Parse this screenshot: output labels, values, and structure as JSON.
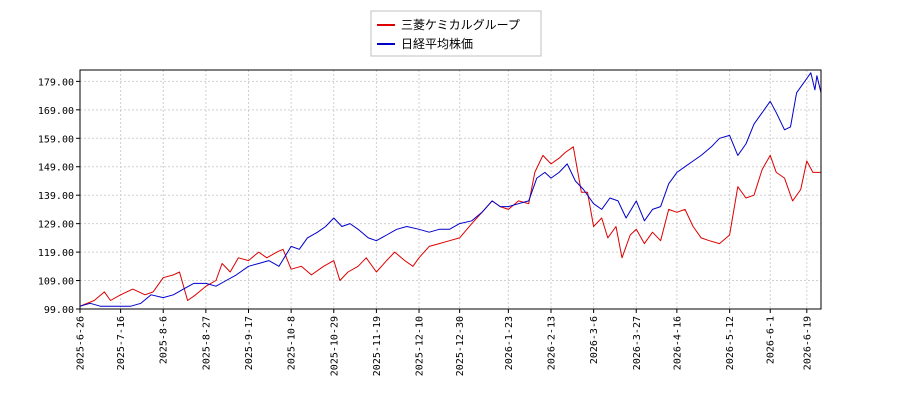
{
  "chart_data": {
    "type": "line",
    "title": "",
    "xlabel": "",
    "ylabel": "",
    "legend_position": "top-center",
    "grid": true,
    "x_range": [
      "2025-06-26",
      "2026-06-26"
    ],
    "ylim": [
      99.0,
      183.0
    ],
    "y_ticks": [
      "99.00",
      "109.00",
      "119.00",
      "129.00",
      "139.00",
      "149.00",
      "159.00",
      "169.00",
      "179.00"
    ],
    "x_ticks": [
      "2025-6-26",
      "2025-7-16",
      "2025-8-6",
      "2025-8-27",
      "2025-9-17",
      "2025-10-8",
      "2025-10-29",
      "2025-11-19",
      "2025-12-10",
      "2025-12-30",
      "2026-1-23",
      "2026-2-13",
      "2026-3-6",
      "2026-3-27",
      "2026-4-16",
      "2026-5-12",
      "2026-6-1",
      "2026-6-19"
    ],
    "series": [
      {
        "name": "三菱ケミカルグループ",
        "color": "#dd0000",
        "points": [
          [
            "2025-06-26",
            100
          ],
          [
            "2025-07-03",
            102
          ],
          [
            "2025-07-08",
            105
          ],
          [
            "2025-07-11",
            102
          ],
          [
            "2025-07-16",
            104
          ],
          [
            "2025-07-22",
            106
          ],
          [
            "2025-07-28",
            104
          ],
          [
            "2025-08-01",
            105
          ],
          [
            "2025-08-06",
            110
          ],
          [
            "2025-08-11",
            111
          ],
          [
            "2025-08-14",
            112
          ],
          [
            "2025-08-18",
            102
          ],
          [
            "2025-08-22",
            104
          ],
          [
            "2025-08-27",
            107
          ],
          [
            "2025-09-01",
            109
          ],
          [
            "2025-09-04",
            115
          ],
          [
            "2025-09-08",
            112
          ],
          [
            "2025-09-12",
            117
          ],
          [
            "2025-09-17",
            116
          ],
          [
            "2025-09-22",
            119
          ],
          [
            "2025-09-26",
            117
          ],
          [
            "2025-10-01",
            119
          ],
          [
            "2025-10-04",
            120
          ],
          [
            "2025-10-08",
            113
          ],
          [
            "2025-10-13",
            114
          ],
          [
            "2025-10-18",
            111
          ],
          [
            "2025-10-24",
            114
          ],
          [
            "2025-10-29",
            116
          ],
          [
            "2025-11-01",
            109
          ],
          [
            "2025-11-05",
            112
          ],
          [
            "2025-11-10",
            114
          ],
          [
            "2025-11-14",
            117
          ],
          [
            "2025-11-19",
            112
          ],
          [
            "2025-11-24",
            116
          ],
          [
            "2025-11-28",
            119
          ],
          [
            "2025-12-03",
            116
          ],
          [
            "2025-12-07",
            114
          ],
          [
            "2025-12-10",
            117
          ],
          [
            "2025-12-15",
            121
          ],
          [
            "2025-12-20",
            122
          ],
          [
            "2025-12-25",
            123
          ],
          [
            "2025-12-30",
            124
          ],
          [
            "2026-01-05",
            129
          ],
          [
            "2026-01-10",
            133
          ],
          [
            "2026-01-15",
            137
          ],
          [
            "2026-01-19",
            135
          ],
          [
            "2026-01-23",
            134
          ],
          [
            "2026-01-28",
            137
          ],
          [
            "2026-02-02",
            136
          ],
          [
            "2026-02-05",
            147
          ],
          [
            "2026-02-09",
            153
          ],
          [
            "2026-02-13",
            150
          ],
          [
            "2026-02-17",
            152
          ],
          [
            "2026-02-20",
            154
          ],
          [
            "2026-02-24",
            156
          ],
          [
            "2026-02-28",
            140
          ],
          [
            "2026-03-03",
            140
          ],
          [
            "2026-03-06",
            128
          ],
          [
            "2026-03-10",
            131
          ],
          [
            "2026-03-13",
            124
          ],
          [
            "2026-03-17",
            128
          ],
          [
            "2026-03-20",
            117
          ],
          [
            "2026-03-24",
            125
          ],
          [
            "2026-03-27",
            127
          ],
          [
            "2026-03-31",
            122
          ],
          [
            "2026-04-04",
            126
          ],
          [
            "2026-04-08",
            123
          ],
          [
            "2026-04-12",
            134
          ],
          [
            "2026-04-16",
            133
          ],
          [
            "2026-04-20",
            134
          ],
          [
            "2026-04-24",
            128
          ],
          [
            "2026-04-28",
            124
          ],
          [
            "2026-05-02",
            123
          ],
          [
            "2026-05-07",
            122
          ],
          [
            "2026-05-12",
            125
          ],
          [
            "2026-05-16",
            142
          ],
          [
            "2026-05-20",
            138
          ],
          [
            "2026-05-24",
            139
          ],
          [
            "2026-05-28",
            148
          ],
          [
            "2026-06-01",
            153
          ],
          [
            "2026-06-04",
            147
          ],
          [
            "2026-06-08",
            145
          ],
          [
            "2026-06-12",
            137
          ],
          [
            "2026-06-16",
            141
          ],
          [
            "2026-06-19",
            151
          ],
          [
            "2026-06-22",
            147
          ],
          [
            "2026-06-26",
            147
          ]
        ]
      },
      {
        "name": "日経平均株価",
        "color": "#0000cc",
        "points": [
          [
            "2025-06-26",
            100
          ],
          [
            "2025-07-01",
            101
          ],
          [
            "2025-07-06",
            100
          ],
          [
            "2025-07-11",
            100
          ],
          [
            "2025-07-16",
            100
          ],
          [
            "2025-07-21",
            100
          ],
          [
            "2025-07-26",
            101
          ],
          [
            "2025-07-31",
            104
          ],
          [
            "2025-08-06",
            103
          ],
          [
            "2025-08-11",
            104
          ],
          [
            "2025-08-16",
            106
          ],
          [
            "2025-08-21",
            108
          ],
          [
            "2025-08-27",
            108
          ],
          [
            "2025-09-01",
            107
          ],
          [
            "2025-09-06",
            109
          ],
          [
            "2025-09-11",
            111
          ],
          [
            "2025-09-17",
            114
          ],
          [
            "2025-09-22",
            115
          ],
          [
            "2025-09-27",
            116
          ],
          [
            "2025-10-02",
            114
          ],
          [
            "2025-10-08",
            121
          ],
          [
            "2025-10-12",
            120
          ],
          [
            "2025-10-16",
            124
          ],
          [
            "2025-10-21",
            126
          ],
          [
            "2025-10-25",
            128
          ],
          [
            "2025-10-29",
            131
          ],
          [
            "2025-11-02",
            128
          ],
          [
            "2025-11-06",
            129
          ],
          [
            "2025-11-10",
            127
          ],
          [
            "2025-11-15",
            124
          ],
          [
            "2025-11-19",
            123
          ],
          [
            "2025-11-24",
            125
          ],
          [
            "2025-11-29",
            127
          ],
          [
            "2025-12-04",
            128
          ],
          [
            "2025-12-10",
            127
          ],
          [
            "2025-12-15",
            126
          ],
          [
            "2025-12-20",
            127
          ],
          [
            "2025-12-25",
            127
          ],
          [
            "2025-12-30",
            129
          ],
          [
            "2026-01-05",
            130
          ],
          [
            "2026-01-10",
            133
          ],
          [
            "2026-01-15",
            137
          ],
          [
            "2026-01-19",
            135
          ],
          [
            "2026-01-23",
            135
          ],
          [
            "2026-01-28",
            136
          ],
          [
            "2026-02-02",
            137
          ],
          [
            "2026-02-06",
            145
          ],
          [
            "2026-02-10",
            147
          ],
          [
            "2026-02-13",
            145
          ],
          [
            "2026-02-17",
            147
          ],
          [
            "2026-02-21",
            150
          ],
          [
            "2026-02-25",
            144
          ],
          [
            "2026-03-01",
            141
          ],
          [
            "2026-03-06",
            136
          ],
          [
            "2026-03-10",
            134
          ],
          [
            "2026-03-14",
            138
          ],
          [
            "2026-03-18",
            137
          ],
          [
            "2026-03-22",
            131
          ],
          [
            "2026-03-27",
            137
          ],
          [
            "2026-03-31",
            130
          ],
          [
            "2026-04-04",
            134
          ],
          [
            "2026-04-08",
            135
          ],
          [
            "2026-04-12",
            143
          ],
          [
            "2026-04-16",
            147
          ],
          [
            "2026-04-20",
            149
          ],
          [
            "2026-04-24",
            151
          ],
          [
            "2026-04-28",
            153
          ],
          [
            "2026-05-03",
            156
          ],
          [
            "2026-05-07",
            159
          ],
          [
            "2026-05-12",
            160
          ],
          [
            "2026-05-16",
            153
          ],
          [
            "2026-05-20",
            157
          ],
          [
            "2026-05-24",
            164
          ],
          [
            "2026-05-28",
            168
          ],
          [
            "2026-06-01",
            172
          ],
          [
            "2026-06-04",
            168
          ],
          [
            "2026-06-08",
            162
          ],
          [
            "2026-06-11",
            163
          ],
          [
            "2026-06-14",
            175
          ],
          [
            "2026-06-17",
            178
          ],
          [
            "2026-06-19",
            180
          ],
          [
            "2026-06-21",
            182
          ],
          [
            "2026-06-23",
            176
          ],
          [
            "2026-06-24",
            181
          ],
          [
            "2026-06-26",
            175
          ]
        ]
      }
    ]
  }
}
